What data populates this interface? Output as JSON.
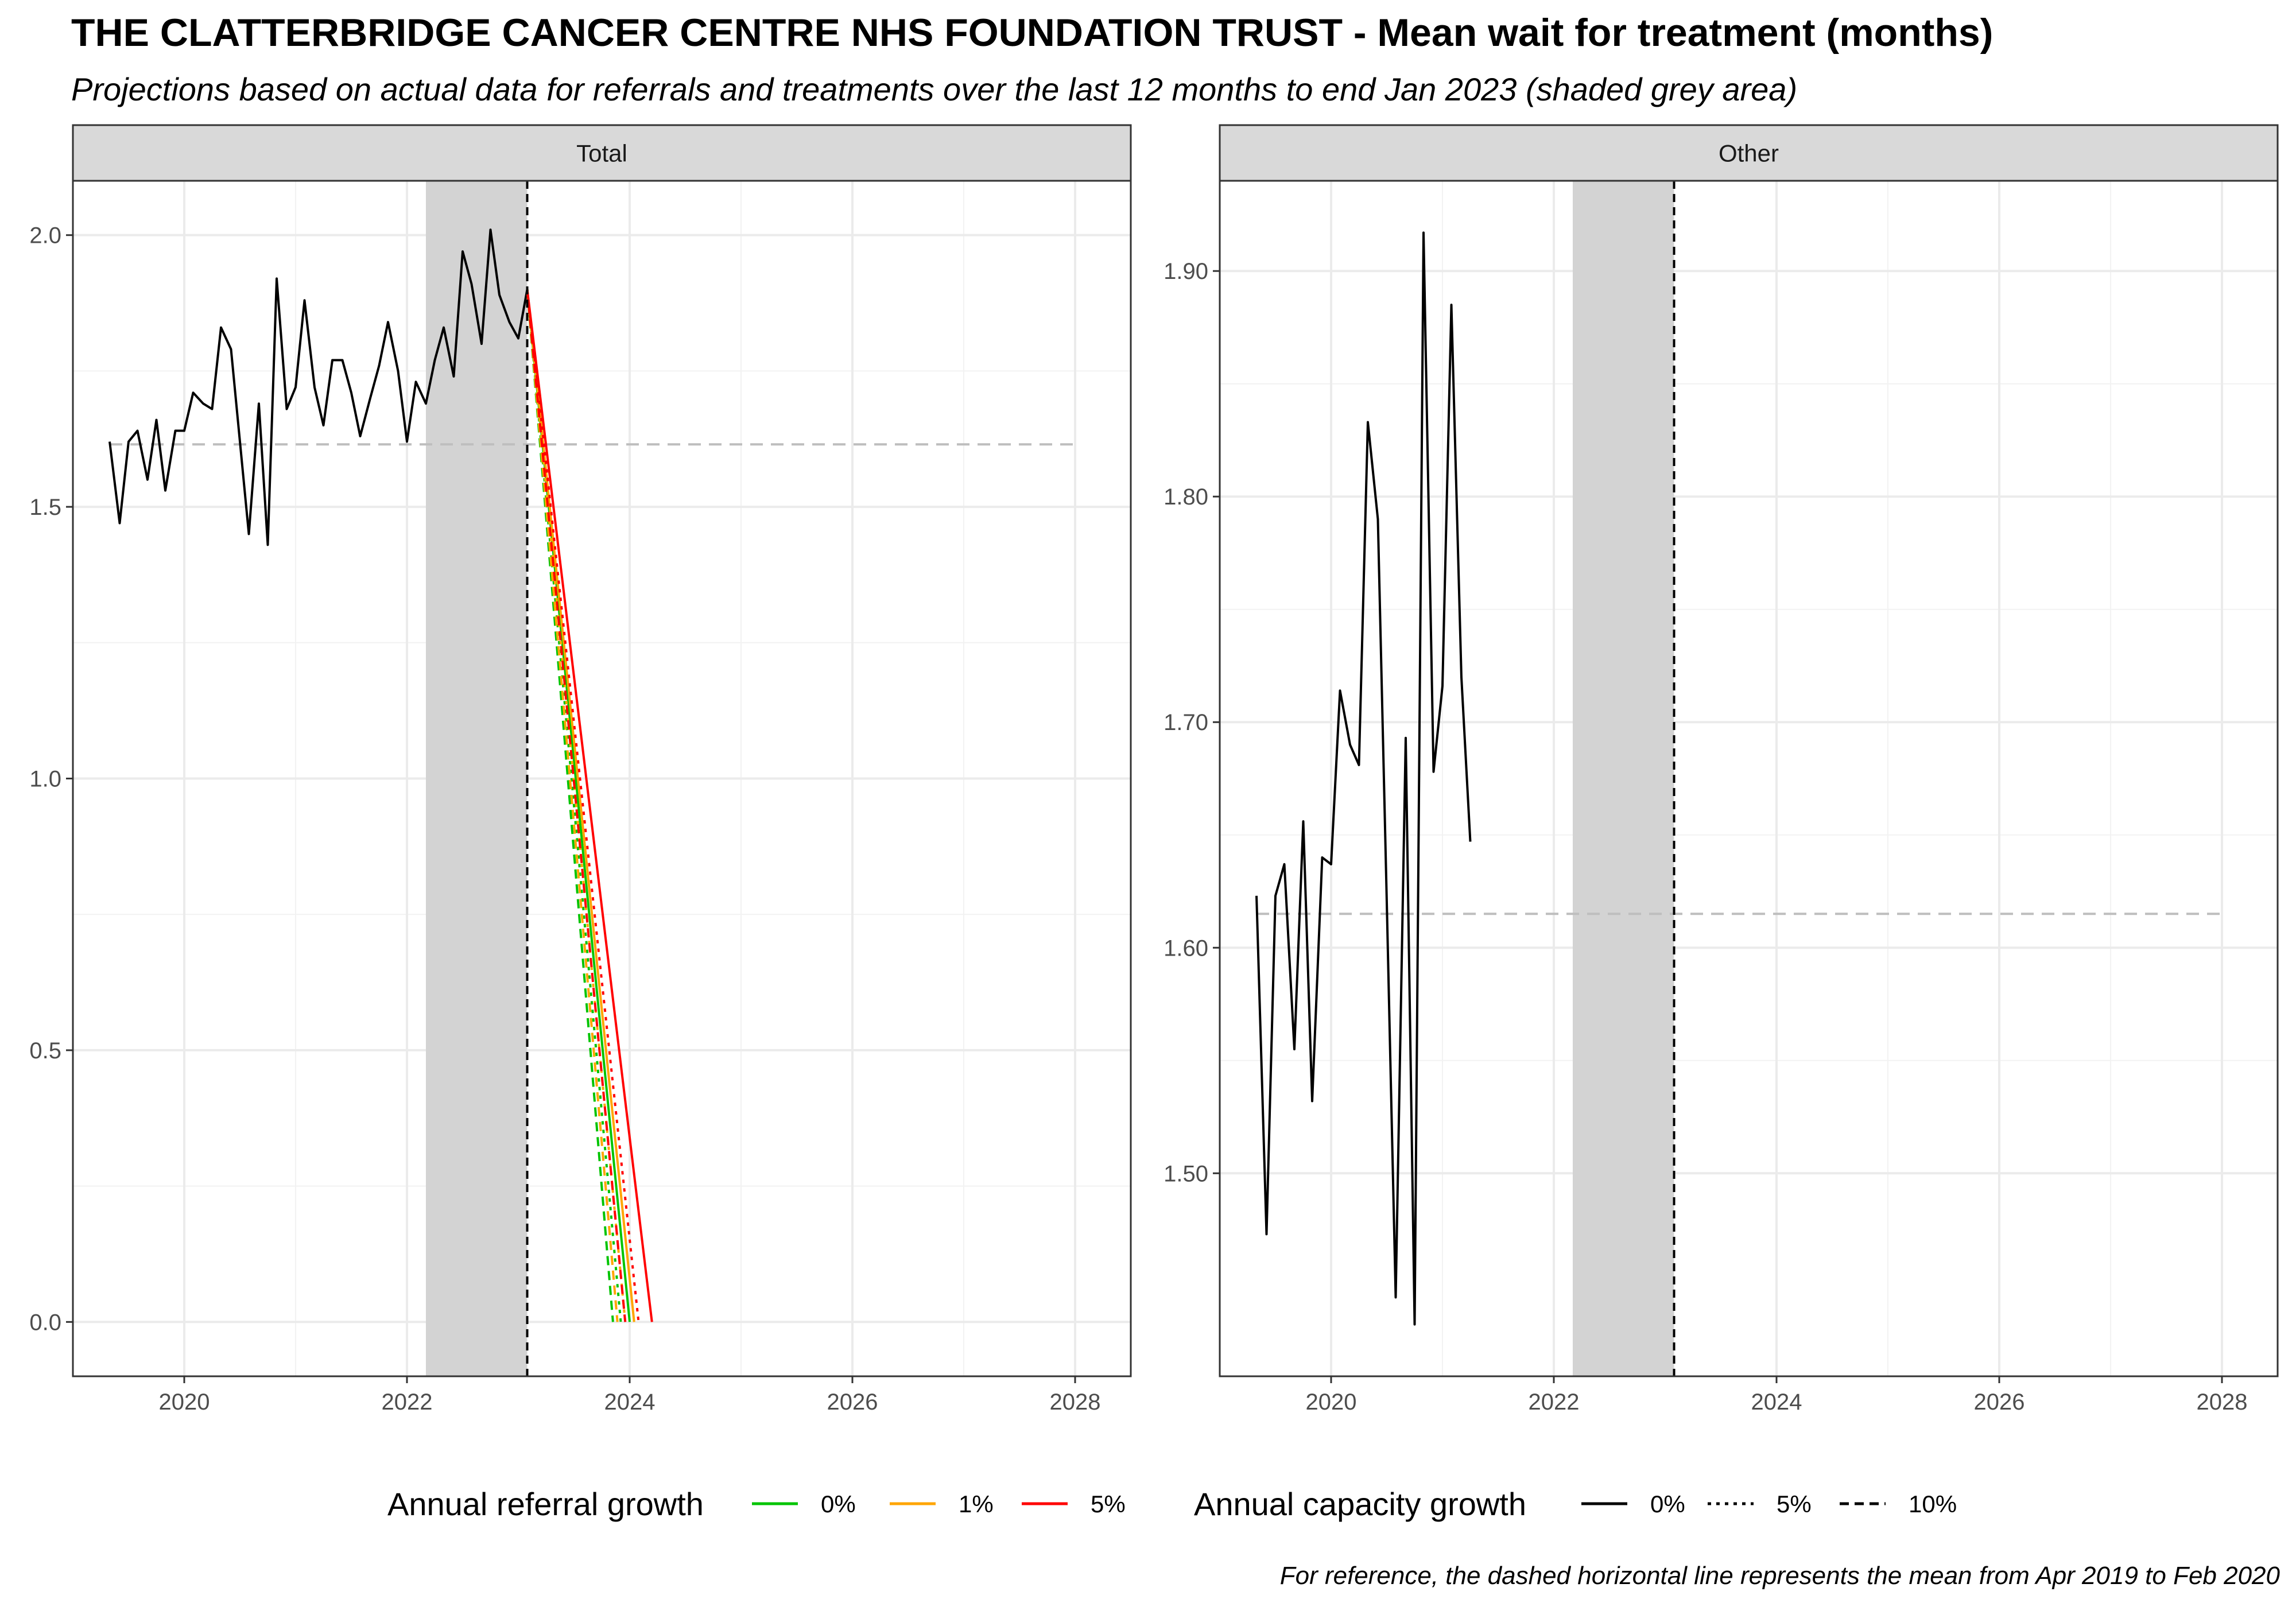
{
  "title": "THE CLATTERBRIDGE CANCER CENTRE NHS FOUNDATION TRUST - Mean wait for treatment (months)",
  "subtitle": "Projections based on actual data for referrals and treatments over the last 12 months to end Jan 2023 (shaded grey area)",
  "caption": "For reference, the dashed horizontal line represents the mean from Apr 2019 to Feb 2020",
  "colors": {
    "growth_0": "#00c400",
    "growth_1": "#ffa500",
    "growth_5": "#ff0000",
    "actual": "#000000",
    "shade": "#d3d3d3",
    "reference_line": "#bebebe",
    "strip": "#d9d9d9"
  },
  "legend": {
    "referral": {
      "title": "Annual referral growth",
      "items": [
        {
          "label": "0%",
          "color": "#00c400"
        },
        {
          "label": "1%",
          "color": "#ffa500"
        },
        {
          "label": "5%",
          "color": "#ff0000"
        }
      ]
    },
    "capacity": {
      "title": "Annual capacity growth",
      "items": [
        {
          "label": "0%",
          "style": "solid"
        },
        {
          "label": "5%",
          "style": "dotted"
        },
        {
          "label": "10%",
          "style": "dashed"
        }
      ]
    }
  },
  "chart_data": [
    {
      "type": "line",
      "panel": "Total",
      "xlim": [
        2019.0,
        2028.5
      ],
      "ylim": [
        -0.1,
        2.1
      ],
      "x_ticks": [
        2020,
        2022,
        2024,
        2026,
        2028
      ],
      "y_ticks": [
        0.0,
        0.5,
        1.0,
        1.5,
        2.0
      ],
      "y_tick_labels": [
        "0.0",
        "0.5",
        "1.0",
        "1.5",
        "2.0"
      ],
      "shaded_region": [
        2022.17,
        2023.08
      ],
      "projection_start": 2023.08,
      "reference_mean": 1.615,
      "reference_range": [
        2019.33,
        2028.0
      ],
      "series": [
        {
          "kind": "actual",
          "x": [
            2019.33,
            2019.42,
            2019.5,
            2019.58,
            2019.67,
            2019.75,
            2019.83,
            2019.92,
            2020.0,
            2020.08,
            2020.17,
            2020.25,
            2020.33,
            2020.42,
            2020.5,
            2020.58,
            2020.67,
            2020.75,
            2020.83,
            2020.92,
            2021.0,
            2021.08,
            2021.17,
            2021.25,
            2021.33,
            2021.42,
            2021.5,
            2021.58,
            2021.67,
            2021.75,
            2021.83,
            2021.92,
            2022.0,
            2022.08,
            2022.17,
            2022.25,
            2022.33,
            2022.42,
            2022.5,
            2022.58,
            2022.67,
            2022.75,
            2022.83,
            2022.92,
            2023.0,
            2023.08
          ],
          "y": [
            1.62,
            1.47,
            1.62,
            1.64,
            1.55,
            1.66,
            1.53,
            1.64,
            1.64,
            1.71,
            1.69,
            1.68,
            1.83,
            1.79,
            1.62,
            1.45,
            1.69,
            1.43,
            1.92,
            1.68,
            1.72,
            1.88,
            1.72,
            1.65,
            1.77,
            1.77,
            1.71,
            1.63,
            1.7,
            1.76,
            1.84,
            1.75,
            1.62,
            1.73,
            1.69,
            1.77,
            1.83,
            1.74,
            1.97,
            1.91,
            1.8,
            2.01,
            1.89,
            1.84,
            1.81,
            1.9
          ]
        },
        {
          "kind": "projection",
          "growth": "0%",
          "capacity": "0%",
          "x": [
            2023.08,
            2024.0
          ],
          "y": [
            1.9,
            0.0
          ]
        },
        {
          "kind": "projection",
          "growth": "1%",
          "capacity": "0%",
          "x": [
            2023.08,
            2024.04
          ],
          "y": [
            1.9,
            0.0
          ]
        },
        {
          "kind": "projection",
          "growth": "5%",
          "capacity": "0%",
          "x": [
            2023.08,
            2024.2
          ],
          "y": [
            1.9,
            0.0
          ]
        },
        {
          "kind": "projection",
          "growth": "0%",
          "capacity": "5%",
          "x": [
            2023.08,
            2023.92
          ],
          "y": [
            1.9,
            0.0
          ]
        },
        {
          "kind": "projection",
          "growth": "1%",
          "capacity": "5%",
          "x": [
            2023.08,
            2023.96
          ],
          "y": [
            1.9,
            0.0
          ]
        },
        {
          "kind": "projection",
          "growth": "5%",
          "capacity": "5%",
          "x": [
            2023.08,
            2024.08
          ],
          "y": [
            1.9,
            0.0
          ]
        },
        {
          "kind": "projection",
          "growth": "0%",
          "capacity": "10%",
          "x": [
            2023.08,
            2023.85
          ],
          "y": [
            1.9,
            0.0
          ]
        },
        {
          "kind": "projection",
          "growth": "1%",
          "capacity": "10%",
          "x": [
            2023.08,
            2023.89
          ],
          "y": [
            1.9,
            0.0
          ]
        },
        {
          "kind": "projection",
          "growth": "5%",
          "capacity": "10%",
          "x": [
            2023.08,
            2023.96
          ],
          "y": [
            1.9,
            0.0
          ]
        }
      ]
    },
    {
      "type": "line",
      "panel": "Other",
      "xlim": [
        2019.0,
        2028.5
      ],
      "ylim": [
        1.41,
        1.94
      ],
      "x_ticks": [
        2020,
        2022,
        2024,
        2026,
        2028
      ],
      "y_ticks": [
        1.5,
        1.6,
        1.7,
        1.8,
        1.9
      ],
      "y_tick_labels": [
        "1.50",
        "1.60",
        "1.70",
        "1.80",
        "1.90"
      ],
      "shaded_region": [
        2022.17,
        2023.08
      ],
      "projection_start": 2023.08,
      "reference_mean": 1.615,
      "reference_range": [
        2019.33,
        2028.0
      ],
      "series": [
        {
          "kind": "actual",
          "x": [
            2019.33,
            2019.42,
            2019.5,
            2019.58,
            2019.67,
            2019.75,
            2019.83,
            2019.92,
            2020.0,
            2020.08,
            2020.17,
            2020.25,
            2020.33,
            2020.42,
            2020.5,
            2020.58,
            2020.67,
            2020.75,
            2020.83,
            2020.92,
            2021.0,
            2021.08,
            2021.17,
            2021.25
          ],
          "y": [
            1.623,
            1.473,
            1.623,
            1.637,
            1.555,
            1.656,
            1.532,
            1.64,
            1.637,
            1.714,
            1.69,
            1.681,
            1.833,
            1.79,
            1.62,
            1.445,
            1.693,
            1.433,
            1.917,
            1.678,
            1.716,
            1.885,
            1.72,
            1.647
          ]
        }
      ]
    }
  ]
}
